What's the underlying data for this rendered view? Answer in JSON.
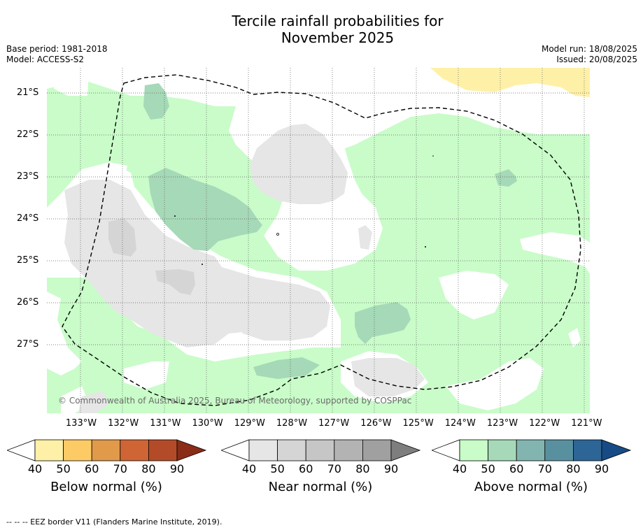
{
  "title": {
    "line1": "Tercile rainfall probabilities for",
    "line2": "November 2025"
  },
  "meta": {
    "base_period": "Base period: 1981-2018",
    "model": "Model: ACCESS-S2",
    "model_run": "Model run: 18/08/2025",
    "issued": "Issued: 20/08/2025"
  },
  "copyright": "© Commonwealth of Australia 2025, Bureau of Meteorology, supported by COSPPac",
  "lat_labels": [
    "21°S",
    "22°S",
    "23°S",
    "24°S",
    "25°S",
    "26°S",
    "27°S"
  ],
  "lon_labels": [
    "133°W",
    "132°W",
    "131°W",
    "130°W",
    "129°W",
    "128°W",
    "127°W",
    "126°W",
    "125°W",
    "124°W",
    "123°W",
    "122°W",
    "121°W"
  ],
  "colors": {
    "below": [
      "#fff0a8",
      "#fccb66",
      "#e09a4a",
      "#cf6535",
      "#b34b28",
      "#8a2c17"
    ],
    "near": [
      "#e6e6e6",
      "#d5d5d5",
      "#c6c6c6",
      "#b3b3b3",
      "#a0a0a0",
      "#7e7e7e"
    ],
    "above": [
      "#c9fcc9",
      "#a6d9b7",
      "#82b5b0",
      "#5990a0",
      "#2d6596",
      "#174b85"
    ]
  },
  "colorbars": [
    {
      "label": "Below normal (%)",
      "ticks": [
        "40",
        "50",
        "60",
        "70",
        "80",
        "90"
      ],
      "palette": "below"
    },
    {
      "label": "Near normal (%)",
      "ticks": [
        "40",
        "50",
        "60",
        "70",
        "80",
        "90"
      ],
      "palette": "near"
    },
    {
      "label": "Above normal (%)",
      "ticks": [
        "40",
        "50",
        "60",
        "70",
        "80",
        "90"
      ],
      "palette": "above"
    }
  ],
  "footnote": "--  --  -- EEZ border V11 (Flanders Marine Institute, 2019)."
}
